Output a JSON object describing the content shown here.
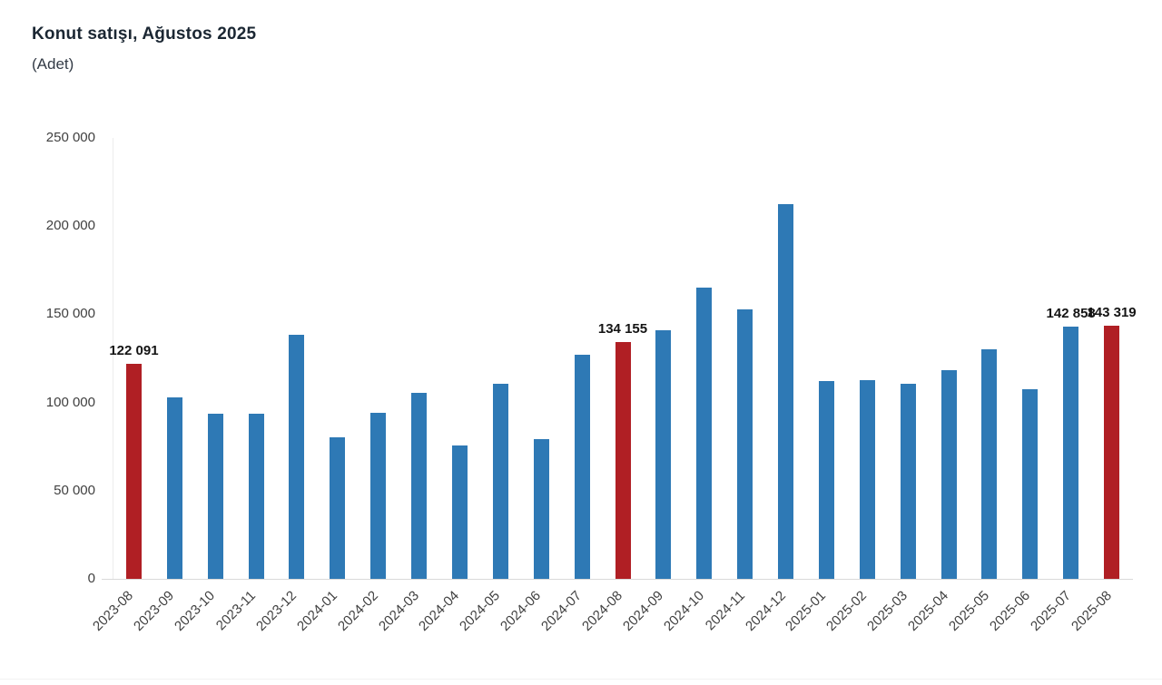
{
  "header": {
    "title": "Konut satışı, Ağustos 2025",
    "subtitle": "(Adet)"
  },
  "colors": {
    "blue": "#2e79b5",
    "red": "#b01f24",
    "axis_line": "#d9d9d9",
    "tick_text": "#404040",
    "title_text": "#1b2733"
  },
  "chart_data": {
    "type": "bar",
    "title": "Konut satışı, Ağustos 2025",
    "ylabel": "(Adet)",
    "xlabel": "",
    "ylim": [
      0,
      250000
    ],
    "ytick_interval": 50000,
    "ytick_labels": [
      "0",
      "50 000",
      "100 000",
      "150 000",
      "200 000",
      "250 000"
    ],
    "grid": false,
    "legend": "none",
    "highlight_note": "bars for 2023-08, 2024-08 and 2025-08 are red; all others blue",
    "points": [
      {
        "category": "2023-08",
        "value": 122091,
        "color": "red",
        "label": "122 091"
      },
      {
        "category": "2023-09",
        "value": 102656,
        "color": "blue"
      },
      {
        "category": "2023-10",
        "value": 93761,
        "color": "blue"
      },
      {
        "category": "2023-11",
        "value": 93514,
        "color": "blue"
      },
      {
        "category": "2023-12",
        "value": 138577,
        "color": "blue"
      },
      {
        "category": "2024-01",
        "value": 80308,
        "color": "blue"
      },
      {
        "category": "2024-02",
        "value": 93902,
        "color": "blue"
      },
      {
        "category": "2024-03",
        "value": 105476,
        "color": "blue"
      },
      {
        "category": "2024-04",
        "value": 75569,
        "color": "blue"
      },
      {
        "category": "2024-05",
        "value": 110588,
        "color": "blue"
      },
      {
        "category": "2024-06",
        "value": 79313,
        "color": "blue"
      },
      {
        "category": "2024-07",
        "value": 127088,
        "color": "blue"
      },
      {
        "category": "2024-08",
        "value": 134155,
        "color": "red",
        "label": "134 155"
      },
      {
        "category": "2024-09",
        "value": 140919,
        "color": "blue"
      },
      {
        "category": "2024-10",
        "value": 165138,
        "color": "blue"
      },
      {
        "category": "2024-11",
        "value": 153014,
        "color": "blue"
      },
      {
        "category": "2024-12",
        "value": 212637,
        "color": "blue"
      },
      {
        "category": "2025-01",
        "value": 112173,
        "color": "blue"
      },
      {
        "category": "2025-02",
        "value": 112818,
        "color": "blue"
      },
      {
        "category": "2025-03",
        "value": 110795,
        "color": "blue"
      },
      {
        "category": "2025-04",
        "value": 118359,
        "color": "blue"
      },
      {
        "category": "2025-05",
        "value": 130025,
        "color": "blue"
      },
      {
        "category": "2025-06",
        "value": 107723,
        "color": "blue"
      },
      {
        "category": "2025-07",
        "value": 142858,
        "color": "blue",
        "label": "142 858"
      },
      {
        "category": "2025-08",
        "value": 143319,
        "color": "red",
        "label": "143 319"
      }
    ]
  }
}
